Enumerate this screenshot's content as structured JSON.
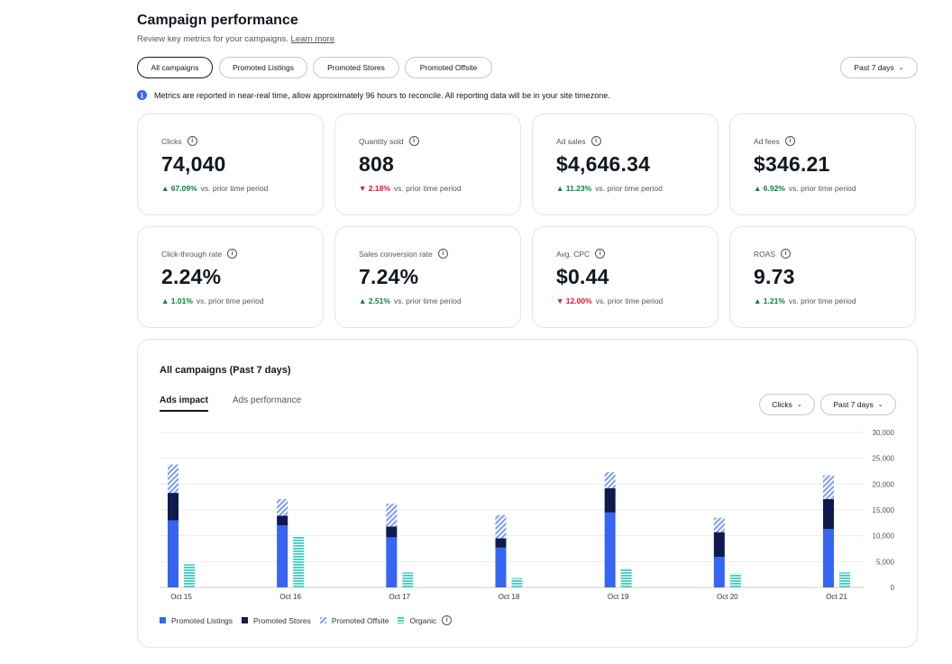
{
  "header": {
    "title": "Campaign performance",
    "subtitle": "Review key metrics for your campaigns.",
    "learn_more": "Learn more"
  },
  "filters": {
    "pills": [
      "All campaigns",
      "Promoted Listings",
      "Promoted Stores",
      "Promoted Offsite"
    ],
    "active": "All campaigns",
    "period": "Past 7 days"
  },
  "notice": {
    "icon": "info-icon",
    "text": "Metrics are reported in near-real time, allow approximately 96 hours to reconcile. All reporting data will be in your site timezone."
  },
  "metrics": [
    {
      "label": "Clicks",
      "value": "74,040",
      "delta": "67.09%",
      "direction": "up",
      "comparison": "vs. prior time period"
    },
    {
      "label": "Quantity sold",
      "value": "808",
      "delta": "2.18%",
      "direction": "down",
      "comparison": "vs. prior time period"
    },
    {
      "label": "Ad sales",
      "value": "$4,646.34",
      "delta": "11.23%",
      "direction": "up",
      "comparison": "vs. prior time period"
    },
    {
      "label": "Ad fees",
      "value": "$346.21",
      "delta": "6.92%",
      "direction": "up",
      "comparison": "vs. prior time period"
    },
    {
      "label": "Click-through rate",
      "value": "2.24%",
      "delta": "1.01%",
      "direction": "up",
      "comparison": "vs. prior time period"
    },
    {
      "label": "Sales conversion rate",
      "value": "7.24%",
      "delta": "2.51%",
      "direction": "up",
      "comparison": "vs. prior time period"
    },
    {
      "label": "Avg. CPC",
      "value": "$0.44",
      "delta": "12.00%",
      "direction": "down",
      "comparison": "vs. prior time period"
    },
    {
      "label": "ROAS",
      "value": "9.73",
      "delta": "1.21%",
      "direction": "up",
      "comparison": "vs. prior time period"
    }
  ],
  "panel": {
    "title": "All campaigns (Past 7 days)",
    "tabs": [
      "Ads impact",
      "Ads performance"
    ],
    "active_tab": "Ads impact",
    "metric_dropdown": "Clicks",
    "period_dropdown": "Past 7 days"
  },
  "colors": {
    "promoted_listings": "#3665f3",
    "promoted_stores": "#0f1a4f",
    "promoted_offsite": "#7d9bf7",
    "organic": "#3fcbc0",
    "up": "#05823f",
    "down": "#e0103a"
  },
  "chart_data": {
    "type": "bar",
    "stacked": true,
    "categories": [
      "Oct 15",
      "Oct 16",
      "Oct 17",
      "Oct 18",
      "Oct 19",
      "Oct 20",
      "Oct 21"
    ],
    "series": [
      {
        "name": "Promoted Listings",
        "stack": "ads",
        "pattern": "solid",
        "values": [
          13000,
          12000,
          9700,
          7700,
          14500,
          5900,
          11300
        ]
      },
      {
        "name": "Promoted Stores",
        "stack": "ads",
        "pattern": "solid",
        "values": [
          5300,
          1900,
          2100,
          1800,
          4700,
          4800,
          5800
        ]
      },
      {
        "name": "Promoted Offsite",
        "stack": "ads",
        "pattern": "diagonal",
        "values": [
          5500,
          3200,
          4400,
          4500,
          3100,
          2800,
          4600
        ]
      },
      {
        "name": "Organic",
        "stack": "organic",
        "pattern": "horizontal",
        "values": [
          4500,
          9800,
          2900,
          1800,
          3700,
          2700,
          2900
        ]
      }
    ],
    "y_ticks": [
      "30,000",
      "25,000",
      "20,000",
      "15,000",
      "10,000",
      "5,000",
      "0"
    ],
    "ylim": [
      0,
      30000
    ],
    "y_axis_side": "right",
    "grid": true,
    "legend": [
      "Promoted Listings",
      "Promoted Stores",
      "Promoted Offsite",
      "Organic"
    ],
    "legend_position": "bottom-left"
  }
}
